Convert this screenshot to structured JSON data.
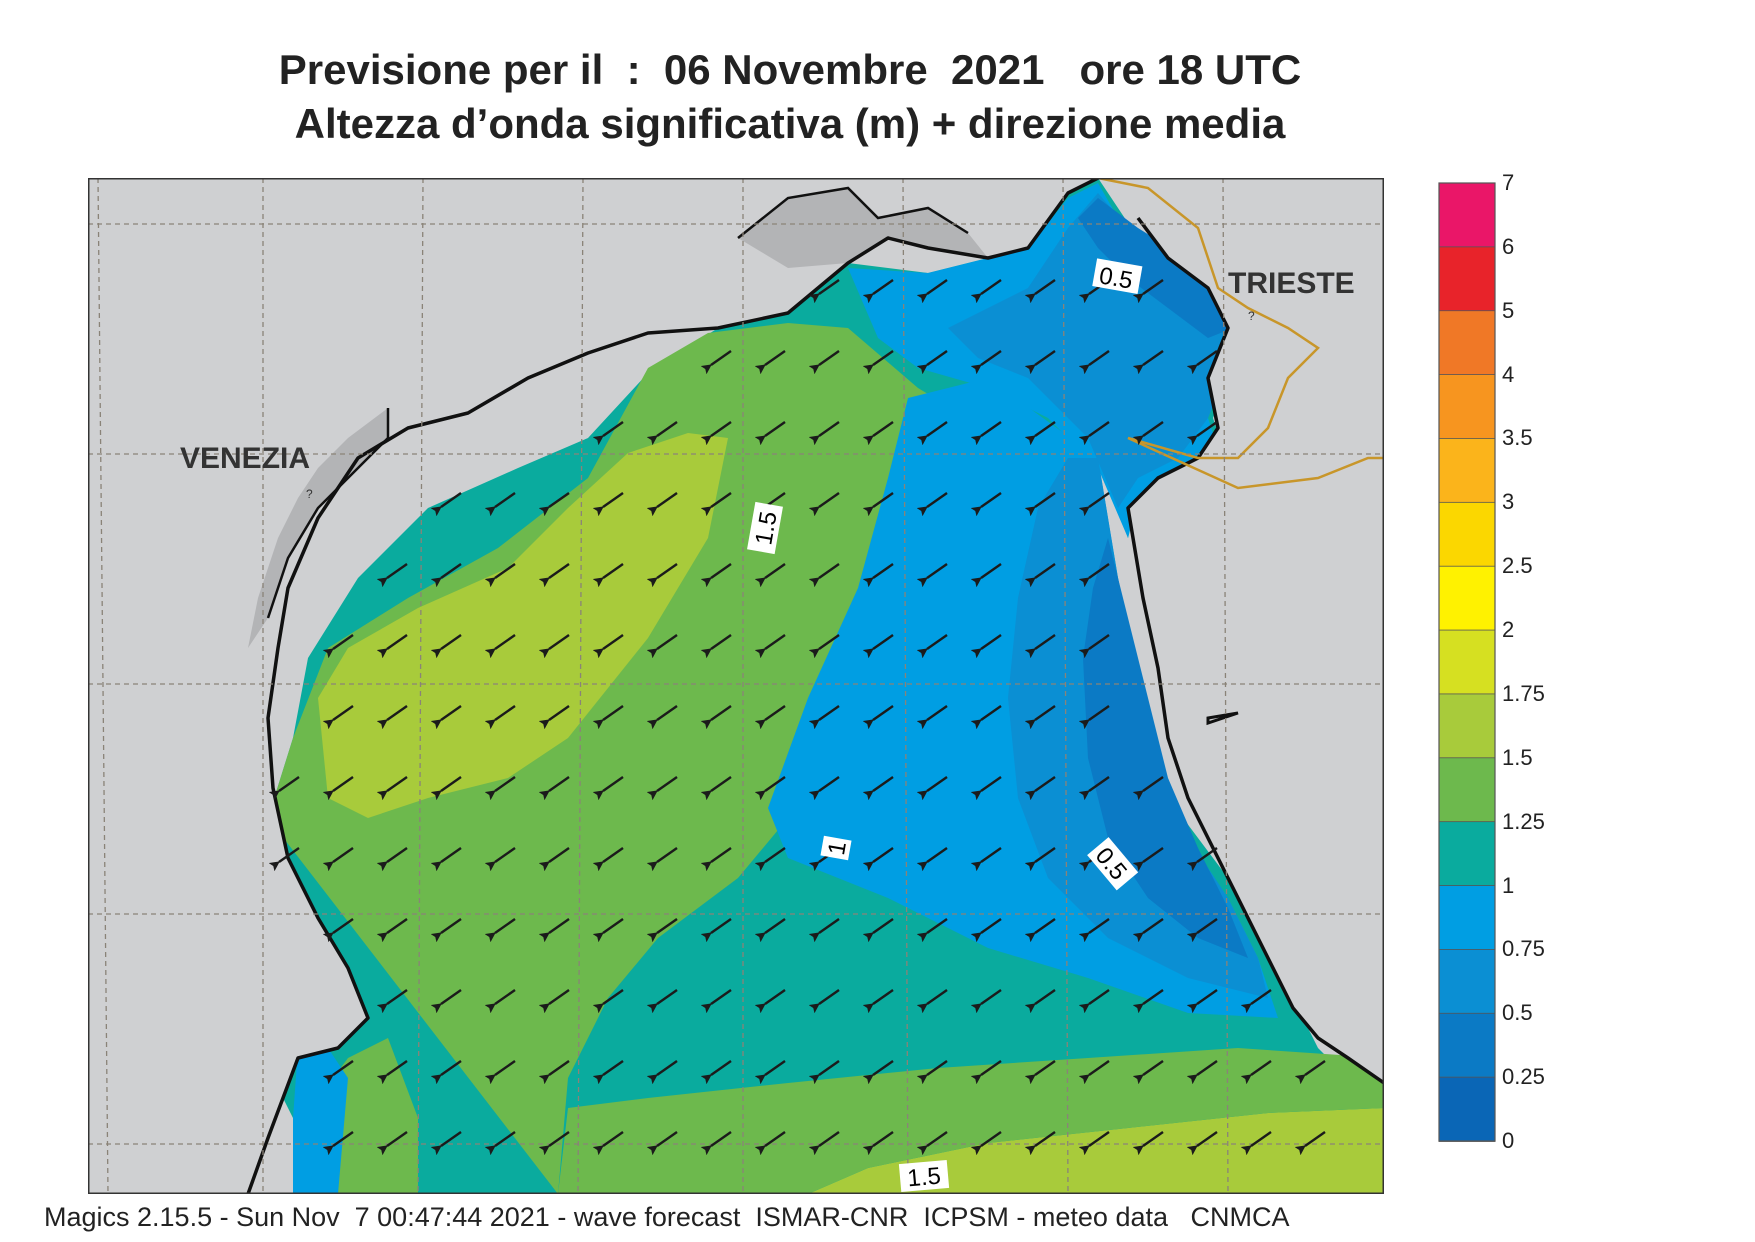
{
  "title": {
    "line1": "Previsione per il  :  06 Novembre  2021   ore 18 UTC",
    "line2": "Altezza d’onda significativa (m) + direzione media"
  },
  "map": {
    "cities": [
      {
        "name": "VENEZIA",
        "lon": 12.33,
        "lat": 45.44
      },
      {
        "name": "TRIESTE",
        "lon": 13.77,
        "lat": 45.65
      }
    ],
    "contour_labels": [
      "0.5",
      "1.5",
      "1",
      "0.5",
      "1.5"
    ],
    "wave_direction": "towards SW",
    "colors": {
      "land": "#cfd0d2",
      "coast": "#111111",
      "border": "#c8962a",
      "grid": "#8a8378"
    }
  },
  "colorbar": {
    "ticks": [
      "7",
      "6",
      "5",
      "4",
      "3.5",
      "3",
      "2.5",
      "2",
      "1.75",
      "1.5",
      "1.25",
      "1",
      "0.75",
      "0.5",
      "0.25",
      "0"
    ],
    "colors": [
      "#ea1668",
      "#e8232a",
      "#f07826",
      "#f7951f",
      "#fbb41b",
      "#fbd700",
      "#fff200",
      "#d6e021",
      "#a8cb3b",
      "#6db94d",
      "#0aab9e",
      "#009ee3",
      "#0b8fd3",
      "#0b7ac5",
      "#0a66b6"
    ]
  },
  "footer": "Magics 2.15.5 - Sun Nov  7 00:47:44 2021 - wave forecast  ISMAR-CNR  ICPSM - meteo data   CNMCA"
}
